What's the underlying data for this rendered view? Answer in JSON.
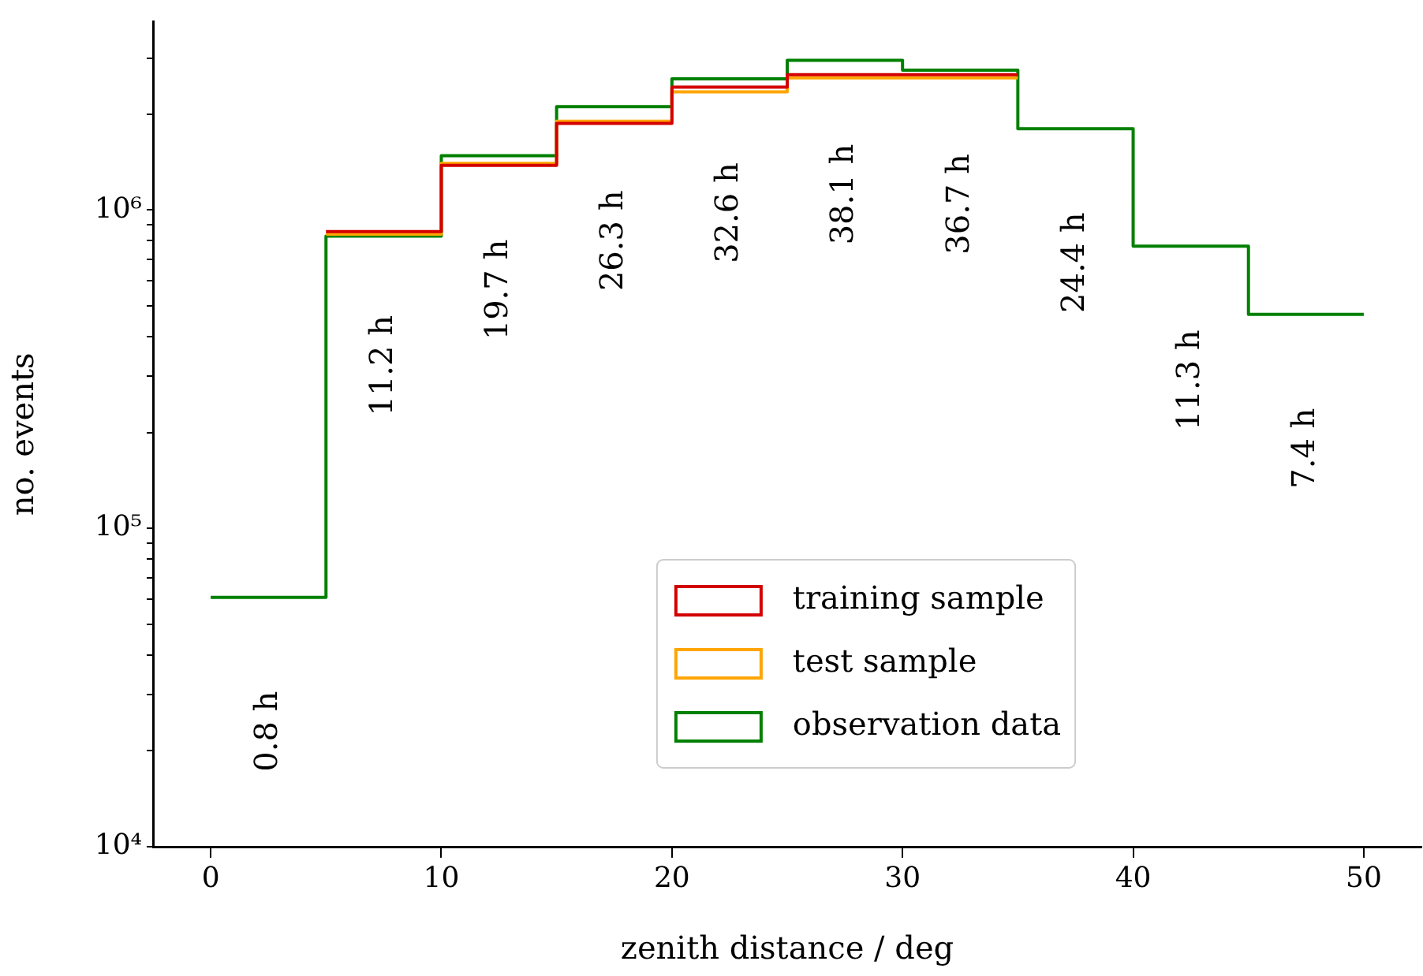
{
  "chart_data": {
    "type": "histogram",
    "xlabel": "zenith distance / deg",
    "ylabel": "no. events",
    "bins": [
      0,
      5,
      10,
      15,
      20,
      25,
      30,
      35,
      40,
      45,
      50
    ],
    "series": [
      {
        "name": "training sample",
        "color": "#d40000",
        "bins": [
          5,
          10,
          15,
          20,
          25,
          30,
          35
        ],
        "values": [
          855000,
          1380000,
          1870000,
          2430000,
          2660000,
          2660000
        ]
      },
      {
        "name": "test sample",
        "color": "#ffa500",
        "bins": [
          5,
          10,
          15,
          20,
          25,
          30,
          35
        ],
        "values": [
          840000,
          1400000,
          1900000,
          2350000,
          2600000,
          2600000
        ]
      },
      {
        "name": "observation data",
        "color": "#008000",
        "values": [
          60700,
          828000,
          1480000,
          2110000,
          2580000,
          2950000,
          2750000,
          1800000,
          770000,
          470000
        ]
      }
    ],
    "log": "y",
    "grid": false,
    "legend": "bottom",
    "xlim": [
      -2.5,
      52.5
    ],
    "xticks": [
      0,
      10,
      20,
      30,
      40,
      50
    ],
    "ylim": [
      10000,
      3900000
    ],
    "yticks": [
      {
        "value": 10000,
        "label": "10⁴"
      },
      {
        "value": 20000,
        "label": null
      },
      {
        "value": 30000,
        "label": null
      },
      {
        "value": 40000,
        "label": null
      },
      {
        "value": 50000,
        "label": null
      },
      {
        "value": 60000,
        "label": null
      },
      {
        "value": 70000,
        "label": null
      },
      {
        "value": 80000,
        "label": null
      },
      {
        "value": 90000,
        "label": null
      },
      {
        "value": 100000,
        "label": "10⁵"
      },
      {
        "value": 200000,
        "label": null
      },
      {
        "value": 300000,
        "label": null
      },
      {
        "value": 400000,
        "label": null
      },
      {
        "value": 500000,
        "label": null
      },
      {
        "value": 600000,
        "label": null
      },
      {
        "value": 700000,
        "label": null
      },
      {
        "value": 800000,
        "label": null
      },
      {
        "value": 900000,
        "label": null
      },
      {
        "value": 1000000,
        "label": "10⁶"
      },
      {
        "value": 2000000,
        "label": null
      },
      {
        "value": 3000000,
        "label": null
      }
    ],
    "annotations": [
      "0.8 h",
      "11.2 h",
      "19.7 h",
      "26.3 h",
      "32.6 h",
      "38.1 h",
      "36.7 h",
      "24.4 h",
      "11.3 h",
      "7.4 h"
    ]
  }
}
